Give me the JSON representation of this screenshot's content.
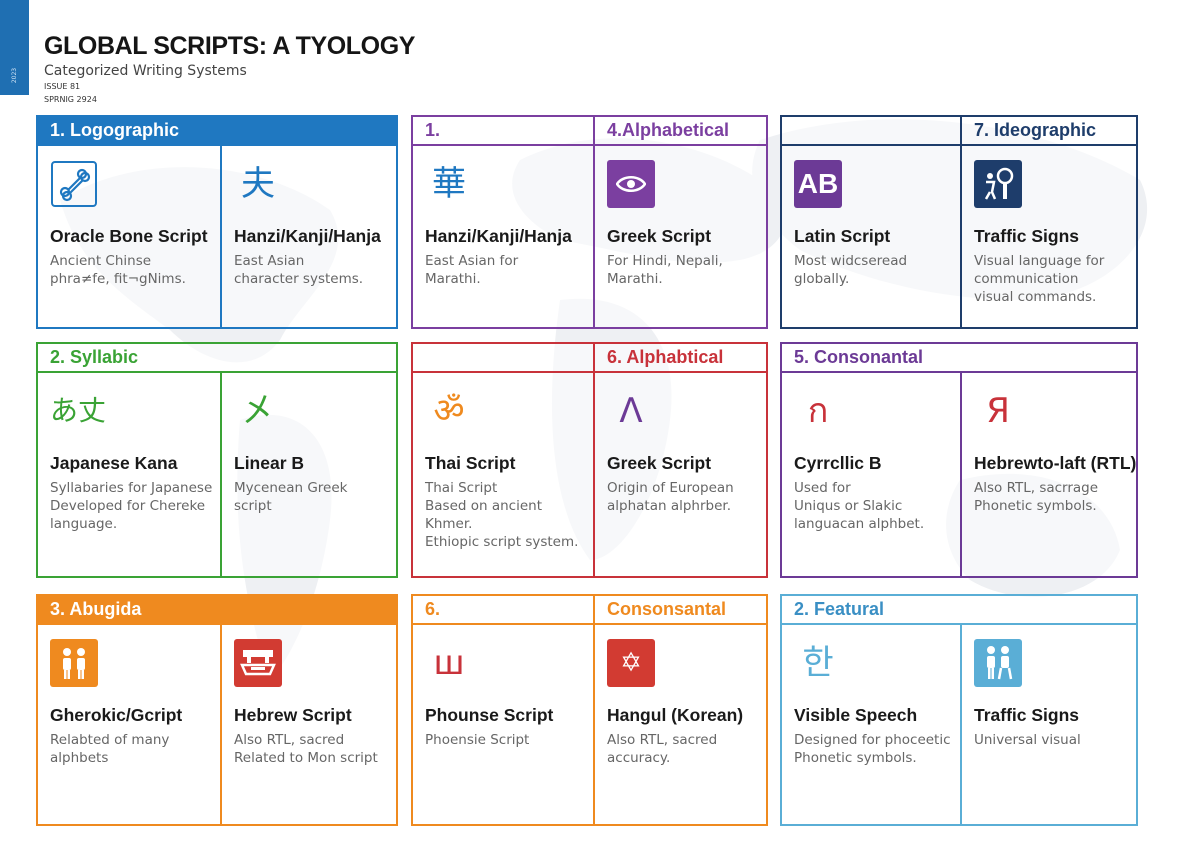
{
  "side_tab": "2023",
  "header": {
    "title": "GLOBAL SCRIPTS: A TYOLOGY",
    "subtitle": "Categorized Writing Systems",
    "issue": "ISSUE 81",
    "season": "SPRNIG 2924"
  },
  "panels": [
    {
      "color": "#1f78c1",
      "headers": [
        {
          "text": "1.  Logographic",
          "fill": "#1f78c1",
          "textColor": "#ffffff"
        }
      ],
      "cells": [
        {
          "icon": "bone-icon",
          "glyph": "",
          "iconStyle": "outline",
          "name": "Oracle Bone Script",
          "desc": "Ancient Chinse\nphra≠fe, fit¬gNims."
        },
        {
          "icon": "hanzi-glyph-icon",
          "glyph": "夫",
          "iconStyle": "glyph",
          "iconColor": "#1f78c1",
          "name": "Hanzi/Kanji/Hanja",
          "desc": "East Asian\ncharacter systems."
        }
      ]
    },
    {
      "color": "#7b3fa0",
      "headers": [
        {
          "text": "1.",
          "fill": "",
          "textColor": "#7b3fa0"
        },
        {
          "text": "4.Alphabetical",
          "fill": "",
          "textColor": "#7b3fa0"
        }
      ],
      "cells": [
        {
          "icon": "hanzi-glyph-icon",
          "glyph": "華",
          "iconStyle": "glyph",
          "iconColor": "#1f78c1",
          "name": "Hanzi/Kanji/Hanja",
          "desc": "East Asian for\nMarathi."
        },
        {
          "icon": "eye-icon",
          "glyph": "",
          "iconStyle": "box",
          "iconBg": "#7b3fa0",
          "name": "Greek Script",
          "desc": "For Hindi, Nepali,\nMarathi."
        }
      ]
    },
    {
      "color": "#1e3d6b",
      "headers": [
        {
          "text": "",
          "fill": "",
          "textColor": "#1e3d6b"
        },
        {
          "text": "7. Ideographic",
          "fill": "",
          "textColor": "#1e3d6b"
        }
      ],
      "cells": [
        {
          "icon": "latin-ab-icon",
          "glyph": "AB",
          "iconStyle": "box",
          "iconBg": "#6c3a96",
          "name": "Latin Script",
          "desc": "Most widcseread\nglobally."
        },
        {
          "icon": "traffic-sign-icon",
          "glyph": "",
          "iconStyle": "box",
          "iconBg": "#1e3d6b",
          "name": "Traffic Signs",
          "desc": "Visual language for\ncommunication\nvisual commands."
        }
      ]
    },
    {
      "color": "#3aa335",
      "headers": [
        {
          "text": "2.  Syllabic",
          "fill": "",
          "textColor": "#3aa335"
        }
      ],
      "cells": [
        {
          "icon": "kana-glyph-icon",
          "glyph": "あ丈",
          "iconStyle": "glyph",
          "iconColor": "#3aa335",
          "name": "Japanese Kana",
          "desc": "Syllabaries for Japanese\nDeveloped for Chereke\nlanguage."
        },
        {
          "icon": "linear-b-glyph-icon",
          "glyph": "㐅",
          "iconStyle": "glyph",
          "iconColor": "#3aa335",
          "name": "Linear B",
          "desc": "Mycenean Greek\nscript"
        }
      ]
    },
    {
      "color": "#c8323a",
      "headers": [
        {
          "text": "",
          "fill": "",
          "textColor": "#c8323a"
        },
        {
          "text": "6. Alphabtical",
          "fill": "",
          "textColor": "#c8323a"
        }
      ],
      "cells": [
        {
          "icon": "om-glyph-icon",
          "glyph": "ॐ",
          "iconStyle": "glyph",
          "iconColor": "#ef8a1f",
          "name": "Thai Script",
          "desc": "Thai Script\nBased on ancient Khmer.\nEthiopic script system."
        },
        {
          "icon": "lambda-glyph-icon",
          "glyph": "Λ",
          "iconStyle": "glyph",
          "iconColor": "#6c3a96",
          "name": "Greek Script",
          "desc": "Origin of European\nalphatan alphrber."
        }
      ]
    },
    {
      "color": "#6c3a96",
      "headers": [
        {
          "text": "5.  Consonantal",
          "fill": "",
          "textColor": "#6c3a96"
        }
      ],
      "cells": [
        {
          "icon": "cyrillic-glyph-icon",
          "glyph": "ก",
          "iconStyle": "glyph",
          "iconColor": "#c8323a",
          "name": "Cyrrcllic B",
          "desc": "Used for\nUniqus or Slakic\nlanguacan alphbet."
        },
        {
          "icon": "ya-glyph-icon",
          "glyph": "Я",
          "iconStyle": "glyph",
          "iconColor": "#c8323a",
          "name": "Hebrewto-laft (RTL).",
          "desc": "Also RTL, sacrrage\nPhonetic symbols."
        }
      ]
    },
    {
      "color": "#ef8a1f",
      "headers": [
        {
          "text": "3.  Abugida",
          "fill": "#ef8a1f",
          "textColor": "#ffffff"
        }
      ],
      "cells": [
        {
          "icon": "people-icon",
          "glyph": "",
          "iconStyle": "box",
          "iconBg": "#ef8a1f",
          "name": "Gherokic/Gcript",
          "desc": "Relabted of many\nalphbets"
        },
        {
          "icon": "boat-icon",
          "glyph": "",
          "iconStyle": "box",
          "iconBg": "#d23b32",
          "name": "Hebrew Script",
          "desc": "Also RTL, sacred\nRelated to Mon script"
        }
      ]
    },
    {
      "color": "#ef8a1f",
      "headers": [
        {
          "text": "6.",
          "fill": "",
          "textColor": "#ef8a1f"
        },
        {
          "text": "Consonsantal",
          "fill": "",
          "textColor": "#ef8a1f"
        }
      ],
      "cells": [
        {
          "icon": "shin-glyph-icon",
          "glyph": "ш",
          "iconStyle": "glyph",
          "iconColor": "#c8323a",
          "name": "Phounse Script",
          "desc": "Phoensie Script"
        },
        {
          "icon": "star-of-david-icon",
          "glyph": "✡",
          "iconStyle": "box",
          "iconBg": "#d23b32",
          "name": "Hangul (Korean)",
          "desc": "Also RTL, sacred\naccuracy."
        }
      ]
    },
    {
      "color": "#5aaed6",
      "headers": [
        {
          "text": "2.  Featural",
          "fill": "",
          "textColor": "#3a8fc4"
        }
      ],
      "cells": [
        {
          "icon": "hangul-glyph-icon",
          "glyph": "한",
          "iconStyle": "glyph",
          "iconColor": "#5aaed6",
          "name": "Visible Speech",
          "desc": "Designed for phoceetic\nPhonetic symbols."
        },
        {
          "icon": "pedestrian-sign-icon",
          "glyph": "",
          "iconStyle": "box",
          "iconBg": "#5aaed6",
          "name": "Traffic Signs",
          "desc": "Universal visual"
        }
      ]
    }
  ]
}
